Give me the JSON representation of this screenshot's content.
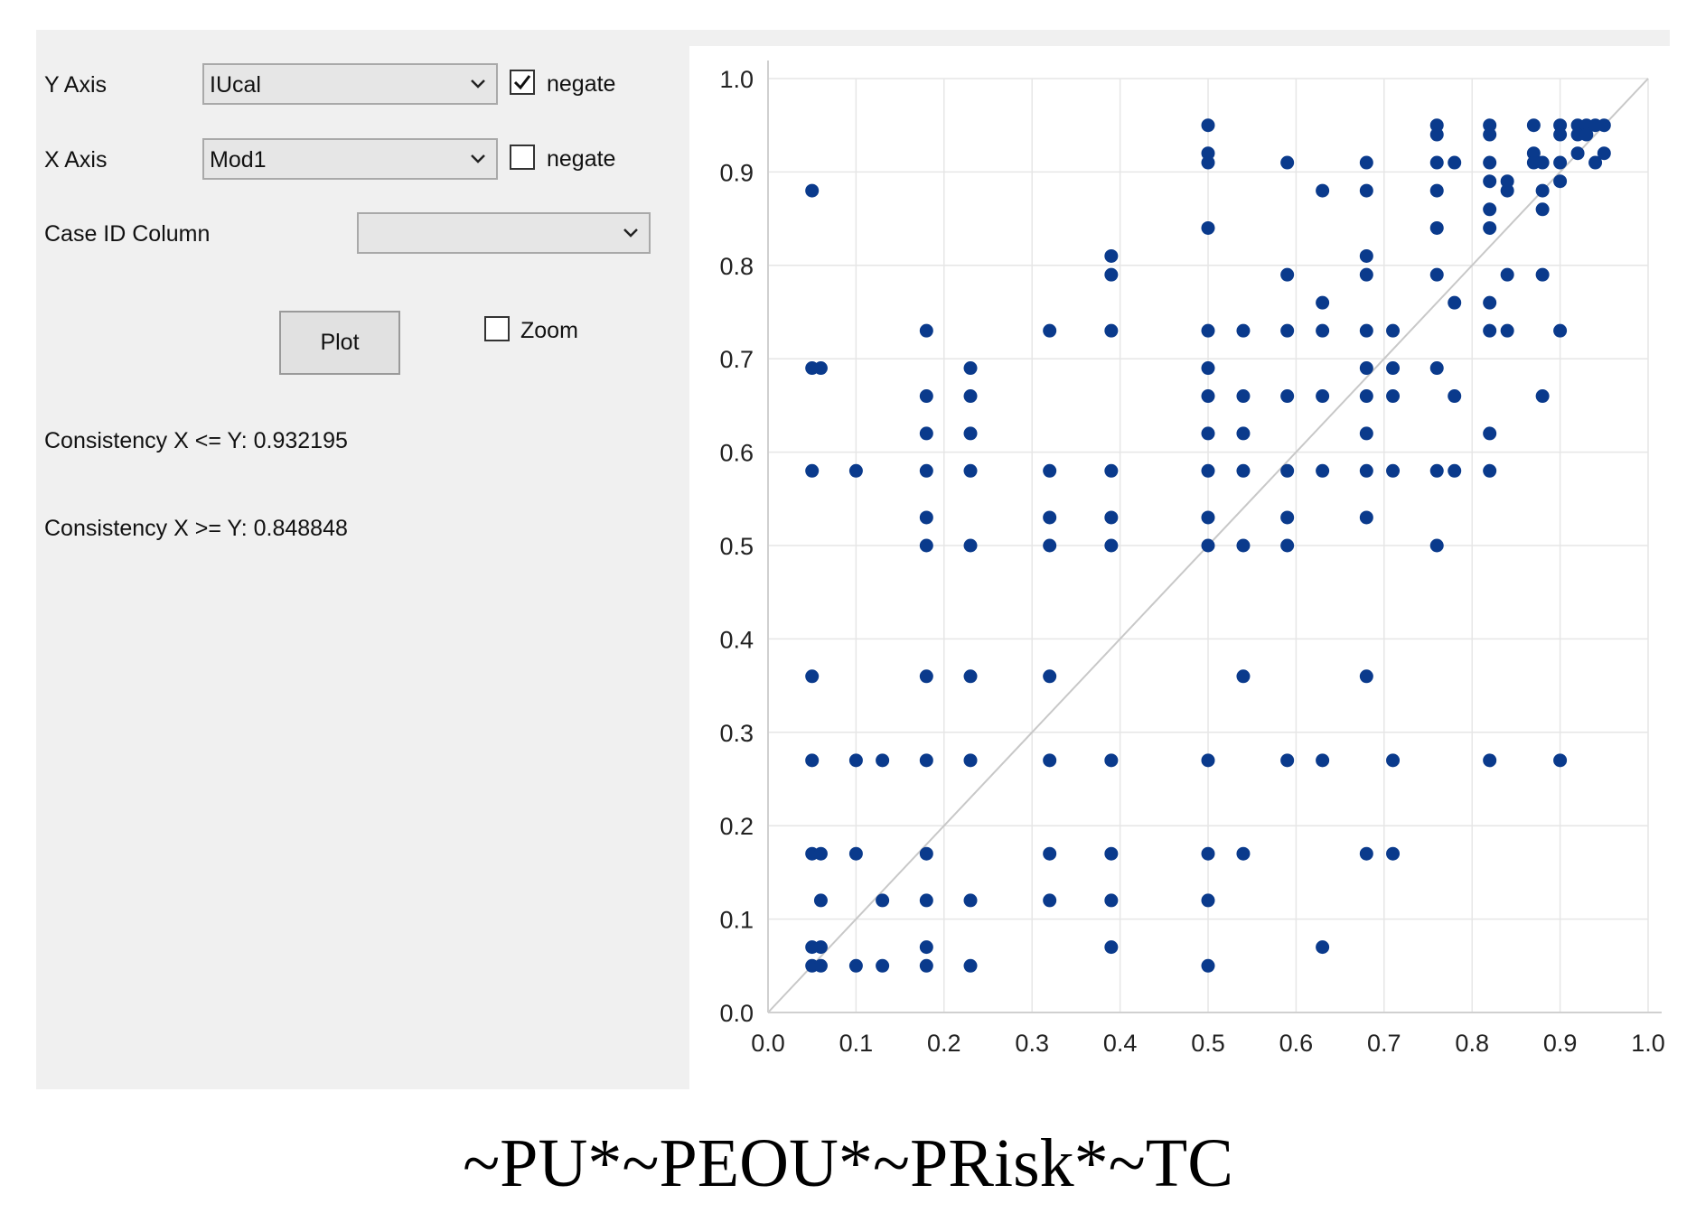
{
  "controls": {
    "y_axis": {
      "label": "Y Axis",
      "selected": "IUcal",
      "negate_label": "negate",
      "negate_checked": true
    },
    "x_axis": {
      "label": "X Axis",
      "selected": "Mod1",
      "negate_label": "negate",
      "negate_checked": false
    },
    "case_id": {
      "label": "Case ID Column",
      "selected": ""
    },
    "plot_button": "Plot",
    "zoom": {
      "label": "Zoom",
      "checked": false
    }
  },
  "consistency": {
    "x_le_y": "Consistency X <= Y: 0.932195",
    "x_ge_y": "Consistency X >= Y: 0.848848"
  },
  "caption": "~PU*~PEOU*~PRisk*~TC",
  "colors": {
    "point": "#0a3a8c",
    "diagonal": "#c8c8c8",
    "grid": "#e6e6e6",
    "panel": "#f0f0f0"
  },
  "chart_data": {
    "type": "scatter",
    "xlim": [
      0,
      1
    ],
    "ylim": [
      0,
      1
    ],
    "x_ticks": [
      "0.0",
      "0.1",
      "0.2",
      "0.3",
      "0.4",
      "0.5",
      "0.6",
      "0.7",
      "0.8",
      "0.9",
      "1.0"
    ],
    "y_ticks": [
      "0.0",
      "0.1",
      "0.2",
      "0.3",
      "0.4",
      "0.5",
      "0.6",
      "0.7",
      "0.8",
      "0.9",
      "1.0"
    ],
    "grid": true,
    "reference_line": "y = x",
    "points": [
      [
        0.05,
        0.88
      ],
      [
        0.05,
        0.69
      ],
      [
        0.06,
        0.69
      ],
      [
        0.05,
        0.58
      ],
      [
        0.05,
        0.36
      ],
      [
        0.05,
        0.27
      ],
      [
        0.05,
        0.17
      ],
      [
        0.06,
        0.17
      ],
      [
        0.06,
        0.12
      ],
      [
        0.05,
        0.07
      ],
      [
        0.06,
        0.07
      ],
      [
        0.05,
        0.05
      ],
      [
        0.06,
        0.05
      ],
      [
        0.1,
        0.58
      ],
      [
        0.1,
        0.27
      ],
      [
        0.1,
        0.17
      ],
      [
        0.1,
        0.05
      ],
      [
        0.13,
        0.27
      ],
      [
        0.13,
        0.12
      ],
      [
        0.13,
        0.05
      ],
      [
        0.18,
        0.73
      ],
      [
        0.18,
        0.66
      ],
      [
        0.18,
        0.62
      ],
      [
        0.18,
        0.58
      ],
      [
        0.18,
        0.53
      ],
      [
        0.18,
        0.5
      ],
      [
        0.18,
        0.36
      ],
      [
        0.18,
        0.27
      ],
      [
        0.18,
        0.17
      ],
      [
        0.18,
        0.12
      ],
      [
        0.18,
        0.07
      ],
      [
        0.18,
        0.05
      ],
      [
        0.23,
        0.69
      ],
      [
        0.23,
        0.66
      ],
      [
        0.23,
        0.62
      ],
      [
        0.23,
        0.58
      ],
      [
        0.23,
        0.5
      ],
      [
        0.23,
        0.36
      ],
      [
        0.23,
        0.27
      ],
      [
        0.23,
        0.12
      ],
      [
        0.23,
        0.05
      ],
      [
        0.32,
        0.73
      ],
      [
        0.32,
        0.58
      ],
      [
        0.32,
        0.53
      ],
      [
        0.32,
        0.5
      ],
      [
        0.32,
        0.36
      ],
      [
        0.32,
        0.27
      ],
      [
        0.32,
        0.17
      ],
      [
        0.32,
        0.12
      ],
      [
        0.39,
        0.81
      ],
      [
        0.39,
        0.79
      ],
      [
        0.39,
        0.73
      ],
      [
        0.39,
        0.58
      ],
      [
        0.39,
        0.53
      ],
      [
        0.39,
        0.5
      ],
      [
        0.39,
        0.27
      ],
      [
        0.39,
        0.17
      ],
      [
        0.39,
        0.12
      ],
      [
        0.39,
        0.07
      ],
      [
        0.5,
        0.95
      ],
      [
        0.5,
        0.92
      ],
      [
        0.5,
        0.91
      ],
      [
        0.5,
        0.84
      ],
      [
        0.5,
        0.73
      ],
      [
        0.5,
        0.69
      ],
      [
        0.5,
        0.66
      ],
      [
        0.5,
        0.62
      ],
      [
        0.5,
        0.58
      ],
      [
        0.5,
        0.53
      ],
      [
        0.5,
        0.5
      ],
      [
        0.5,
        0.27
      ],
      [
        0.5,
        0.17
      ],
      [
        0.5,
        0.12
      ],
      [
        0.5,
        0.05
      ],
      [
        0.54,
        0.73
      ],
      [
        0.54,
        0.66
      ],
      [
        0.54,
        0.62
      ],
      [
        0.54,
        0.58
      ],
      [
        0.54,
        0.5
      ],
      [
        0.54,
        0.36
      ],
      [
        0.54,
        0.17
      ],
      [
        0.59,
        0.91
      ],
      [
        0.59,
        0.79
      ],
      [
        0.59,
        0.73
      ],
      [
        0.59,
        0.66
      ],
      [
        0.59,
        0.58
      ],
      [
        0.59,
        0.53
      ],
      [
        0.59,
        0.5
      ],
      [
        0.59,
        0.27
      ],
      [
        0.63,
        0.88
      ],
      [
        0.63,
        0.76
      ],
      [
        0.63,
        0.73
      ],
      [
        0.63,
        0.66
      ],
      [
        0.63,
        0.58
      ],
      [
        0.63,
        0.27
      ],
      [
        0.63,
        0.07
      ],
      [
        0.68,
        0.91
      ],
      [
        0.68,
        0.88
      ],
      [
        0.68,
        0.81
      ],
      [
        0.68,
        0.79
      ],
      [
        0.68,
        0.73
      ],
      [
        0.68,
        0.69
      ],
      [
        0.68,
        0.66
      ],
      [
        0.68,
        0.62
      ],
      [
        0.68,
        0.58
      ],
      [
        0.68,
        0.53
      ],
      [
        0.68,
        0.36
      ],
      [
        0.68,
        0.17
      ],
      [
        0.71,
        0.73
      ],
      [
        0.71,
        0.69
      ],
      [
        0.71,
        0.66
      ],
      [
        0.71,
        0.58
      ],
      [
        0.71,
        0.27
      ],
      [
        0.71,
        0.17
      ],
      [
        0.76,
        0.95
      ],
      [
        0.76,
        0.94
      ],
      [
        0.76,
        0.91
      ],
      [
        0.76,
        0.88
      ],
      [
        0.76,
        0.84
      ],
      [
        0.76,
        0.79
      ],
      [
        0.76,
        0.69
      ],
      [
        0.76,
        0.58
      ],
      [
        0.76,
        0.5
      ],
      [
        0.78,
        0.91
      ],
      [
        0.78,
        0.76
      ],
      [
        0.78,
        0.66
      ],
      [
        0.78,
        0.58
      ],
      [
        0.82,
        0.95
      ],
      [
        0.82,
        0.94
      ],
      [
        0.82,
        0.91
      ],
      [
        0.82,
        0.89
      ],
      [
        0.82,
        0.86
      ],
      [
        0.82,
        0.84
      ],
      [
        0.82,
        0.76
      ],
      [
        0.82,
        0.73
      ],
      [
        0.82,
        0.62
      ],
      [
        0.82,
        0.58
      ],
      [
        0.82,
        0.27
      ],
      [
        0.84,
        0.89
      ],
      [
        0.84,
        0.88
      ],
      [
        0.84,
        0.79
      ],
      [
        0.84,
        0.73
      ],
      [
        0.87,
        0.95
      ],
      [
        0.87,
        0.92
      ],
      [
        0.87,
        0.91
      ],
      [
        0.88,
        0.91
      ],
      [
        0.88,
        0.88
      ],
      [
        0.88,
        0.86
      ],
      [
        0.88,
        0.79
      ],
      [
        0.88,
        0.66
      ],
      [
        0.9,
        0.95
      ],
      [
        0.9,
        0.94
      ],
      [
        0.9,
        0.91
      ],
      [
        0.9,
        0.89
      ],
      [
        0.9,
        0.73
      ],
      [
        0.9,
        0.27
      ],
      [
        0.92,
        0.95
      ],
      [
        0.92,
        0.94
      ],
      [
        0.92,
        0.92
      ],
      [
        0.93,
        0.95
      ],
      [
        0.93,
        0.94
      ],
      [
        0.94,
        0.95
      ],
      [
        0.94,
        0.91
      ],
      [
        0.95,
        0.95
      ],
      [
        0.95,
        0.92
      ]
    ]
  }
}
